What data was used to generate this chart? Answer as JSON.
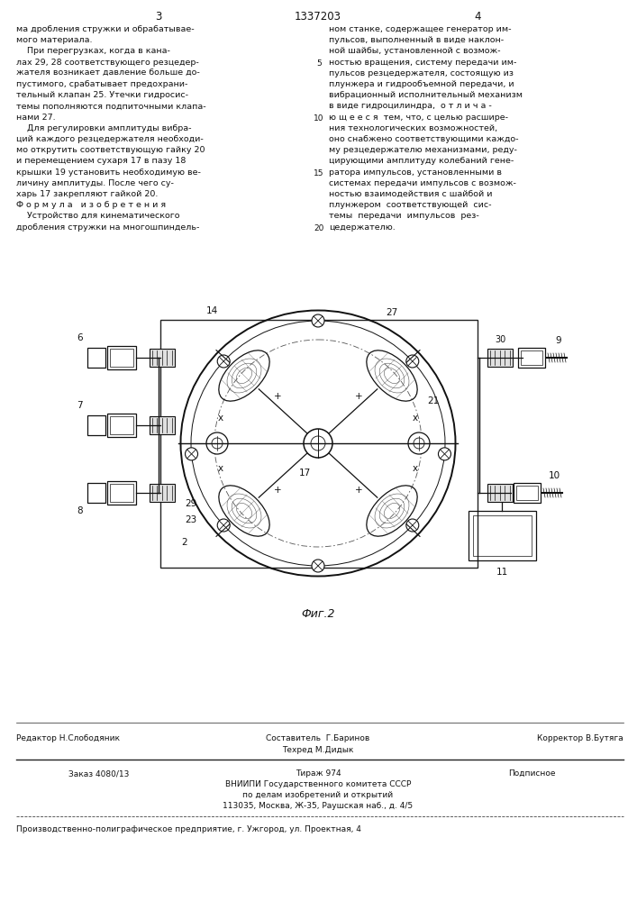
{
  "page_width": 7.07,
  "page_height": 10.0,
  "bg": "#ffffff",
  "page_num_left": "3",
  "page_num_center": "1337203",
  "page_num_right": "4",
  "left_col": [
    "ма дробления стружки и обрабатывае-",
    "мого материала.",
    "    При перегрузках, когда в кана-",
    "лах 29, 28 соответствующего резцедер-",
    "жателя возникает давление больше до-",
    "пустимого, срабатывает предохрани-",
    "тельный клапан 25. Утечки гидросис-",
    "темы пополняются подпиточными клапа-",
    "нами 27.",
    "    Для регулировки амплитуды вибра-",
    "ций каждого резцедержателя необходи-",
    "мо открутить соответствующую гайку 20",
    "и перемещением сухаря 17 в пазу 18",
    "крышки 19 установить необходимую ве-",
    "личину амплитуды. После чего су-",
    "харь 17 закрепляют гайкой 20.",
    "Ф о р м у л а   и з о б р е т е н и я",
    "    Устройство для кинематического",
    "дробления стружки на многошпиндель-"
  ],
  "right_col": [
    "ном станке, содержащее генератор им-",
    "пульсов, выполненный в виде наклон-",
    "ной шайбы, установленной с возмож-",
    "ностью вращения, систему передачи им-",
    "пульсов резцедержателя, состоящую из",
    "плунжера и гидрообъемной передачи, и",
    "вибрационный исполнительный механизм",
    "в виде гидроцилиндра,  о т л и ч а -",
    "ю щ е е с я  тем, что, с целью расшире-",
    "ния технологических возможностей,",
    "оно снабжено соответствующими каждо-",
    "му резцедержателю механизмами, реду-",
    "цирующими амплитуду колебаний гене-",
    "ратора импульсов, установленными в",
    "системах передачи импульсов с возмож-",
    "ностью взаимодействия с шайбой и",
    "плунжером  соответствующей  сис-",
    "темы  передачи  импульсов  рез-",
    "цедержателю."
  ],
  "fig_caption": "Фиг.2",
  "footer_editor": "Редактор Н.Слободяник",
  "footer_composer": "Составитель  Г.Баринов",
  "footer_techred": "Техред М.Дидык",
  "footer_corrector": "Корректор В.Бутяга",
  "footer_order": "Заказ 4080/13",
  "footer_tirazh": "Тираж 974",
  "footer_podpisnoe": "Подписное",
  "footer_vniipи": "ВНИИПИ Государственного комитета СССР",
  "footer_po_delam": "по делам изобретений и открытий",
  "footer_address": "113035, Москва, Ж-35, Раушская наб., д. 4/5",
  "footer_production": "Производственно-полиграфическое предприятие, г. Ужгород, ул. Проектная, 4"
}
